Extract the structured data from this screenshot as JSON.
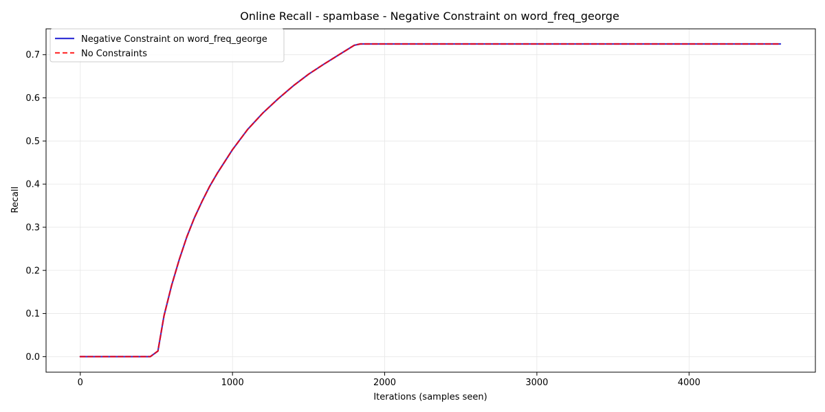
{
  "chart_data": {
    "type": "line",
    "title": "Online Recall - spambase - Negative Constraint on word_freq_george",
    "xlabel": "Iterations (samples seen)",
    "ylabel": "Recall",
    "xlim": [
      -225,
      4830
    ],
    "ylim": [
      -0.036,
      0.76
    ],
    "x_ticks": [
      0,
      1000,
      2000,
      3000,
      4000
    ],
    "x_tick_labels": [
      "0",
      "1000",
      "2000",
      "3000",
      "4000"
    ],
    "y_ticks": [
      0.0,
      0.1,
      0.2,
      0.3,
      0.4,
      0.5,
      0.6,
      0.7
    ],
    "y_tick_labels": [
      "0.0",
      "0.1",
      "0.2",
      "0.3",
      "0.4",
      "0.5",
      "0.6",
      "0.7"
    ],
    "grid": true,
    "legend_position": "upper-left",
    "series": [
      {
        "name": "Negative Constraint on word_freq_george",
        "color": "#0000cc",
        "style": "solid",
        "x": [
          0,
          460,
          510,
          550,
          600,
          650,
          700,
          750,
          800,
          850,
          900,
          1000,
          1100,
          1200,
          1300,
          1400,
          1500,
          1600,
          1700,
          1800,
          1840,
          4600
        ],
        "y": [
          0.0,
          0.0,
          0.013,
          0.095,
          0.165,
          0.225,
          0.278,
          0.322,
          0.36,
          0.395,
          0.425,
          0.48,
          0.527,
          0.565,
          0.598,
          0.628,
          0.655,
          0.678,
          0.7,
          0.722,
          0.725,
          0.725
        ]
      },
      {
        "name": "No Constraints",
        "color": "#ff0000",
        "style": "dashed",
        "x": [
          0,
          460,
          510,
          550,
          600,
          650,
          700,
          750,
          800,
          850,
          900,
          1000,
          1100,
          1200,
          1300,
          1400,
          1500,
          1600,
          1700,
          1800,
          1840,
          4600
        ],
        "y": [
          0.0,
          0.0,
          0.013,
          0.095,
          0.165,
          0.225,
          0.278,
          0.322,
          0.36,
          0.395,
          0.425,
          0.48,
          0.527,
          0.565,
          0.598,
          0.628,
          0.655,
          0.678,
          0.7,
          0.722,
          0.725,
          0.725
        ]
      }
    ]
  }
}
